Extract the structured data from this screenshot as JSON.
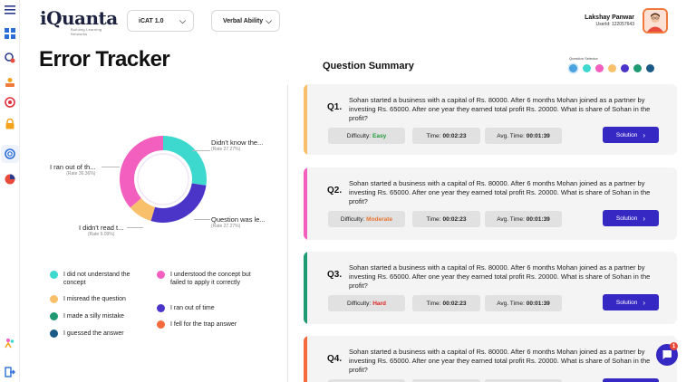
{
  "header": {
    "logo_text": "iQuanta",
    "logo_tagline": "Building Learning Networks",
    "exam_dropdown": "iCAT 1.0",
    "section_dropdown": "Verbal Ability",
    "user_name": "Lakshay Panwar",
    "user_id": "UserId: 122057643"
  },
  "sidebar": {
    "icons": [
      "menu-icon",
      "dashboard-icon",
      "analytics-icon",
      "learning-icon",
      "target-icon",
      "lock-icon",
      "error-tracker-icon",
      "pie-icon",
      "community-icon",
      "logout-icon"
    ]
  },
  "left": {
    "title": "Error Tracker",
    "donut_labels": [
      {
        "text": "Didn't know the...",
        "rate": "(Rate 27.27%)"
      },
      {
        "text": "Question was le...",
        "rate": "(Rate 27.27%)"
      },
      {
        "text": "I didn't read t...",
        "rate": "(Rate 9.09%)"
      },
      {
        "text": "I ran out of th...",
        "rate": "(Rate 36.36%)"
      }
    ],
    "legend": [
      {
        "label": "I did not understand the concept",
        "color": "#3dd9cf"
      },
      {
        "label": "I misread the question",
        "color": "#f9c06b"
      },
      {
        "label": "I made a silly mistake",
        "color": "#1f9a73"
      },
      {
        "label": "I guessed the answer",
        "color": "#1a5a86"
      },
      {
        "label": "I understood the concept but failed to apply it correctly",
        "color": "#f25fbf"
      },
      {
        "label": "I ran out of time",
        "color": "#4a35c8"
      },
      {
        "label": "I fell for the trap answer",
        "color": "#f46a3d"
      }
    ]
  },
  "chart_data": {
    "type": "pie",
    "categories": [
      "Didn't know the...",
      "Question was le...",
      "I didn't read t...",
      "I ran out of th..."
    ],
    "values": [
      27.27,
      27.27,
      9.09,
      36.36
    ],
    "colors": [
      "#3dd9cf",
      "#4a35c8",
      "#f9c06b",
      "#f25fbf"
    ],
    "donut": true
  },
  "right": {
    "title": "Question Summary",
    "selector_label": "Question Selector",
    "selector_colors": [
      "#4aa3df",
      "#3dd9cf",
      "#f25fbf",
      "#f9c06b",
      "#4a35c8",
      "#1f9a73",
      "#1a5a86"
    ],
    "difficulty_label": "Difficulty:",
    "time_label": "Time:",
    "avg_label": "Avg. Time:",
    "solution_label": "Solution",
    "questions": [
      {
        "num": "Q1.",
        "text": "Sohan started a business with a capital of Rs. 80000. After 6 months Mohan joined as a partner by investing Rs. 65000. After one year they earned total profit Rs. 20000. What is share of Sohan in the profit?",
        "difficulty": "Easy",
        "difficulty_color": "#1f9a3a",
        "time": "00:02:23",
        "avg": "00:01:39",
        "bar": "#f9c06b"
      },
      {
        "num": "Q2.",
        "text": "Sohan started a business with a capital of Rs. 80000. After 6 months Mohan joined as a partner by investing Rs. 65000. After one year they earned total profit Rs. 20000. What is share of Sohan in the profit?",
        "difficulty": "Moderate",
        "difficulty_color": "#e8742f",
        "time": "00:02:23",
        "avg": "00:01:39",
        "bar": "#f25fbf"
      },
      {
        "num": "Q3.",
        "text": "Sohan started a business with a capital of Rs. 80000. After 6 months Mohan joined as a partner by investing Rs. 65000. After one year they earned total profit Rs. 20000. What is share of Sohan in the profit?",
        "difficulty": "Hard",
        "difficulty_color": "#e02424",
        "time": "00:02:23",
        "avg": "00:01:39",
        "bar": "#1f9a73"
      },
      {
        "num": "Q4.",
        "text": "Sohan started a business with a capital of Rs. 80000. After 6 months Mohan joined as a partner by investing Rs. 65000. After one year they earned total profit Rs. 20000. What is share of Sohan in the profit?",
        "difficulty": "",
        "difficulty_color": "#e02424",
        "time": "",
        "avg": "",
        "bar": "#f46a3d"
      }
    ]
  },
  "chat": {
    "badge": "1"
  }
}
